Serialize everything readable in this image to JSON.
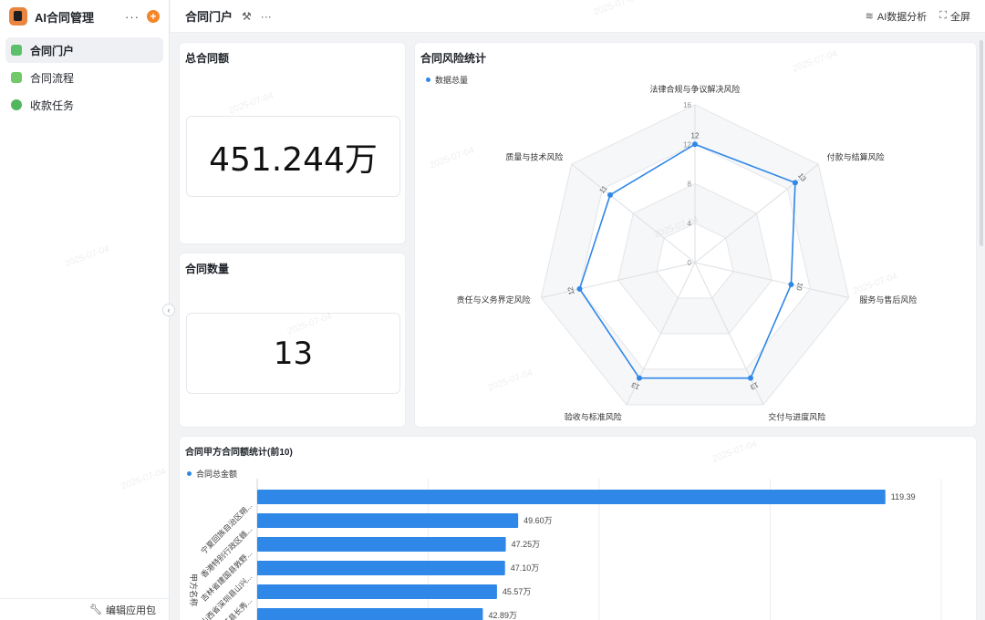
{
  "sidebar": {
    "app_name": "AI合同管理",
    "more_glyph": "···",
    "add_glyph": "+",
    "items": [
      {
        "label": "合同门户",
        "icon": "portal-icon"
      },
      {
        "label": "合同流程",
        "icon": "document-icon"
      },
      {
        "label": "收款任务",
        "icon": "coin-icon"
      }
    ],
    "footer_label": "编辑应用包",
    "collapse_glyph": "‹"
  },
  "header": {
    "title": "合同门户",
    "more_glyph": "···",
    "ai_label": "AI数据分析",
    "fullscreen_label": "全屏"
  },
  "total_amount": {
    "title": "总合同额",
    "value": "451.244万"
  },
  "contract_count": {
    "title": "合同数量",
    "value": "13"
  },
  "watermark_text": "2025-07-04",
  "chart_data": [
    {
      "type": "radar",
      "title": "合同风险统计",
      "legend": [
        "数据总量"
      ],
      "color": "#2f87e7",
      "axes": [
        "法律合规与争议解决风险",
        "付款与结算风险",
        "服务与售后风险",
        "交付与进度风险",
        "验收与标准风险",
        "责任与义务界定风险",
        "质量与技术风险"
      ],
      "values": [
        12,
        13,
        10,
        13,
        13,
        12,
        11
      ],
      "rmax": 16,
      "ticks": [
        0,
        4,
        8,
        12,
        16
      ]
    },
    {
      "type": "bar",
      "orientation": "horizontal",
      "title": "合同甲方合同额统计(前10)",
      "legend": [
        "合同总金额"
      ],
      "ylabel": "甲方名称",
      "color": "#2f87e7",
      "categories": [
        "宁夏回族自治区朔...",
        "香港特别行政区赣...",
        "吉林省建国县敦野...",
        "山西省深圳县山兴...",
        "安徽省秀英县长秀...",
        ""
      ],
      "values": [
        119.39,
        49.6,
        47.25,
        47.1,
        45.57,
        42.89
      ],
      "value_labels": [
        "119.39",
        "49.60万",
        "47.25万",
        "47.10万",
        "45.57万",
        "42.89万"
      ],
      "xlim": [
        0,
        130
      ]
    }
  ]
}
